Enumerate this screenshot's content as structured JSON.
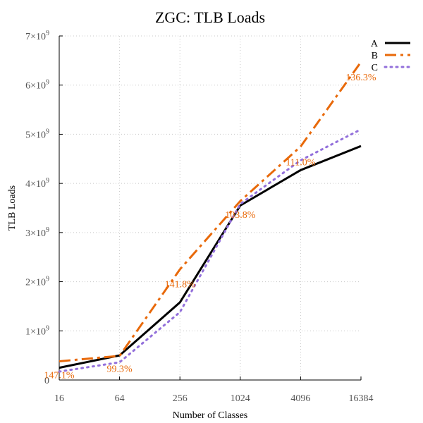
{
  "chart_data": {
    "type": "line",
    "title": "ZGC: TLB Loads",
    "xlabel": "Number of Classes",
    "ylabel": "TLB Loads",
    "x": [
      16,
      64,
      256,
      1024,
      4096,
      16384
    ],
    "x_scale": "log2",
    "ylim": [
      0,
      7000000000
    ],
    "y_ticks": [
      {
        "value": 0,
        "base": "0",
        "exp": ""
      },
      {
        "value": 1000000000,
        "base": "1×10",
        "exp": "9"
      },
      {
        "value": 2000000000,
        "base": "2×10",
        "exp": "9"
      },
      {
        "value": 3000000000,
        "base": "3×10",
        "exp": "9"
      },
      {
        "value": 4000000000,
        "base": "4×10",
        "exp": "9"
      },
      {
        "value": 5000000000,
        "base": "5×10",
        "exp": "9"
      },
      {
        "value": 6000000000,
        "base": "6×10",
        "exp": "9"
      },
      {
        "value": 7000000000,
        "base": "7×10",
        "exp": "9"
      }
    ],
    "x_tick_labels": [
      "16",
      "64",
      "256",
      "1024",
      "4096",
      "16384"
    ],
    "grid": true,
    "legend_position": "top-right",
    "series": [
      {
        "name": "A",
        "color": "#000000",
        "dash": "solid",
        "values": [
          250000000,
          500000000,
          1580000000,
          3550000000,
          4270000000,
          4760000000
        ]
      },
      {
        "name": "B",
        "color": "#e8690a",
        "dash": "dashdot",
        "values": [
          380000000,
          490000000,
          2250000000,
          3640000000,
          4750000000,
          6470000000
        ]
      },
      {
        "name": "C",
        "color": "#9370db",
        "dash": "dotted",
        "values": [
          170000000,
          360000000,
          1380000000,
          3580000000,
          4470000000,
          5100000000
        ]
      }
    ],
    "annotations": [
      {
        "x": 16,
        "y": 110000000,
        "text": "147.1%",
        "color": "#e8690a"
      },
      {
        "x": 64,
        "y": 240000000,
        "text": "99.3%",
        "color": "#e8690a"
      },
      {
        "x": 256,
        "y": 1960000000,
        "text": "141.8%",
        "color": "#e8690a"
      },
      {
        "x": 1024,
        "y": 3370000000,
        "text": "103.8%",
        "color": "#e8690a"
      },
      {
        "x": 4096,
        "y": 4440000000,
        "text": "111.0%",
        "color": "#e8690a"
      },
      {
        "x": 16384,
        "y": 6170000000,
        "text": "136.3%",
        "color": "#e8690a"
      }
    ]
  }
}
